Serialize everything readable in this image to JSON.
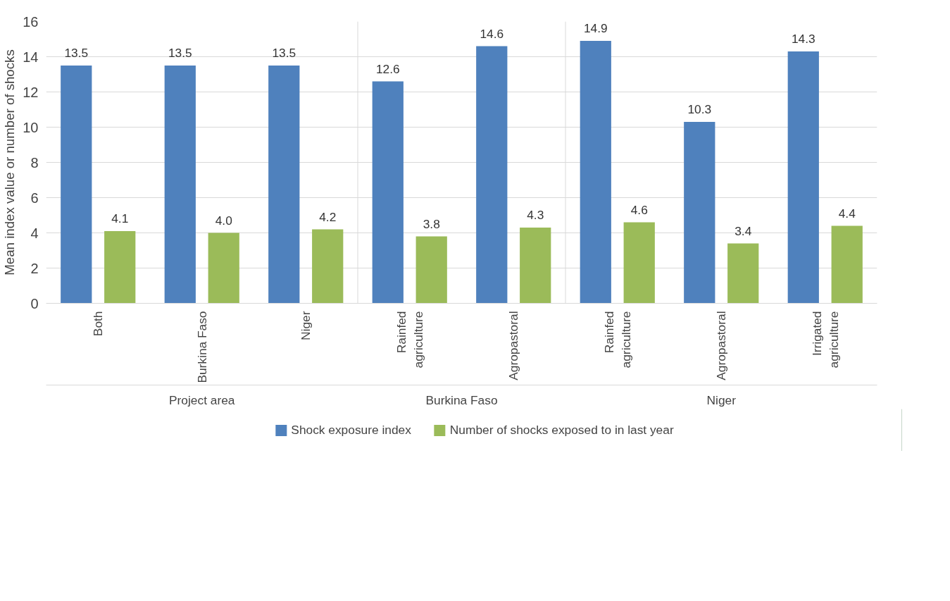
{
  "chart_data": {
    "type": "bar",
    "ylabel": "Mean index value or number of shocks",
    "categories": [
      "Both",
      "Burkina Faso",
      "Niger",
      "Rainfed agriculture",
      "Agropastoral",
      "Rainfed agriculture",
      "Agropastoral",
      "Irrigated agriculture"
    ],
    "series": [
      {
        "name": "Shock exposure index",
        "color": "#4f81bd",
        "values": [
          13.5,
          13.5,
          13.5,
          12.6,
          14.6,
          14.9,
          10.3,
          14.3
        ],
        "value_labels": [
          "13.5",
          "13.5",
          "13.5",
          "12.6",
          "14.6",
          "14.9",
          "10.3",
          "14.3"
        ]
      },
      {
        "name": "Number of shocks exposed to in last year",
        "color": "#9bbb59",
        "values": [
          4.1,
          4.0,
          4.2,
          3.8,
          4.3,
          4.6,
          3.4,
          4.4
        ],
        "value_labels": [
          "4.1",
          "4.0",
          "4.2",
          "3.8",
          "4.3",
          "4.6",
          "3.4",
          "4.4"
        ]
      }
    ],
    "annotations": [
      "Project area",
      "Burkina Faso",
      "Niger"
    ],
    "ylim": [
      0,
      16
    ],
    "yticks": [
      0,
      2,
      4,
      6,
      8,
      10,
      12,
      14,
      16
    ],
    "grid": "y",
    "legend": "bottom"
  }
}
